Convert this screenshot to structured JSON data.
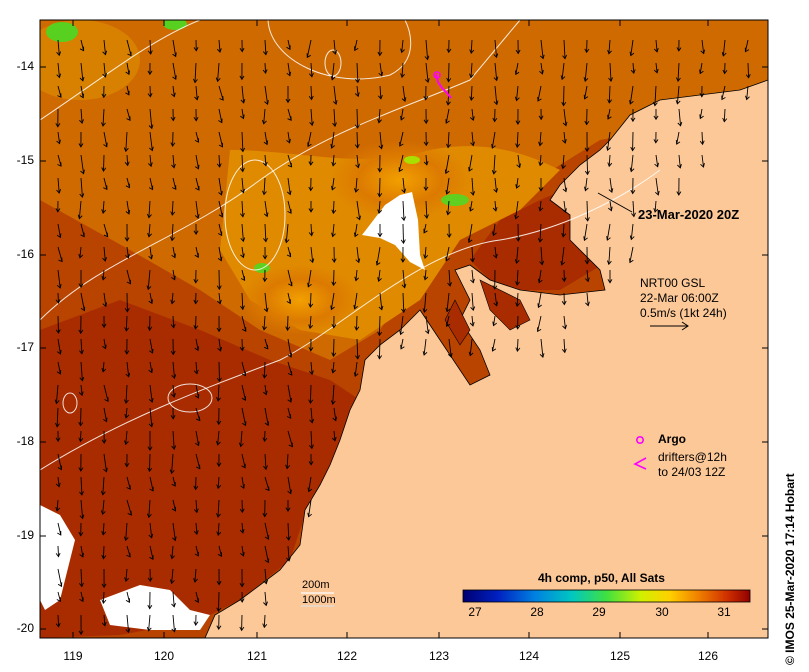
{
  "map": {
    "y_ticks": [
      "-14",
      "-15",
      "-16",
      "-17",
      "-18",
      "-19",
      "-20"
    ],
    "x_ticks": [
      "119",
      "120",
      "121",
      "122",
      "123",
      "124",
      "125",
      "126"
    ]
  },
  "timestamp_label": "23-Mar-2020 20Z",
  "currents": {
    "line1": "NRT00 GSL",
    "line2": "22-Mar 06:00Z",
    "line3": "0.5m/s (1kt 24h)"
  },
  "argo": {
    "label": "Argo",
    "drifters_line1": "drifters@12h",
    "drifters_line2": "to 24/03 12Z",
    "color": "#ff00ff"
  },
  "isobaths": {
    "label_200": "200m",
    "label_1000": "1000m"
  },
  "colorbar": {
    "title": "4h comp, p50, All Sats",
    "ticks": [
      "27",
      "28",
      "29",
      "30",
      "31"
    ]
  },
  "credit": "IMOS 25-Mar-2020 17:14 Hobart",
  "copyright_symbol": "©",
  "colors": {
    "sea_warm": "#a82c00",
    "sea_mid": "#d06a00",
    "land": "#fcc898",
    "cloud": "#ffffff"
  }
}
